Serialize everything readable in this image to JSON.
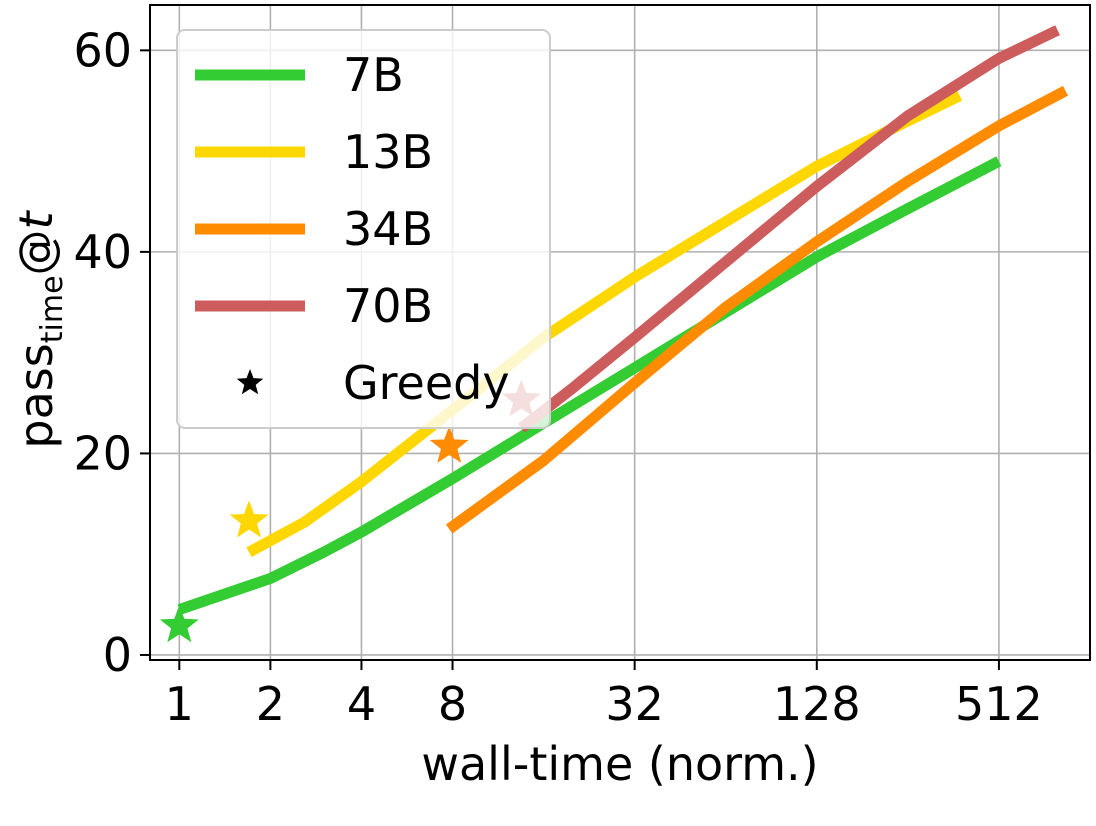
{
  "chart_data": {
    "type": "line",
    "xscale": "log2",
    "xlabel": "wall-time (norm.)",
    "ylabel": {
      "main": "pass",
      "sub": "time",
      "at": "@",
      "var": "t"
    },
    "xlim": [
      0.8,
      1024
    ],
    "ylim": [
      -0.5,
      64.5
    ],
    "xticks": [
      1,
      2,
      4,
      8,
      32,
      128,
      512
    ],
    "xtick_labels": [
      "1",
      "2",
      "4",
      "8",
      "32",
      "128",
      "512"
    ],
    "yticks": [
      0,
      20,
      40,
      60
    ],
    "ytick_labels": [
      "0",
      "20",
      "40",
      "60"
    ],
    "grid": true,
    "legend_position": "top-left",
    "series": [
      {
        "name": "7B",
        "color": "#33cc33",
        "points": [
          [
            1,
            4.5
          ],
          [
            2,
            7.6
          ],
          [
            3,
            10.2
          ],
          [
            4,
            12.2
          ],
          [
            8,
            17.5
          ],
          [
            16,
            23
          ],
          [
            32,
            28.5
          ],
          [
            64,
            34
          ],
          [
            128,
            39.5
          ],
          [
            256,
            44.3
          ],
          [
            512,
            49
          ]
        ],
        "greedy": [
          1,
          2.9
        ]
      },
      {
        "name": "13B",
        "color": "#ffd700",
        "points": [
          [
            1.7,
            10.2
          ],
          [
            2.6,
            13.2
          ],
          [
            4,
            17.2
          ],
          [
            8,
            24.3
          ],
          [
            16,
            31.5
          ],
          [
            32,
            37.5
          ],
          [
            64,
            43
          ],
          [
            128,
            48.5
          ],
          [
            256,
            53
          ],
          [
            380,
            55.5
          ]
        ],
        "greedy": [
          1.7,
          13.3
        ]
      },
      {
        "name": "34B",
        "color": "#ff8c00",
        "points": [
          [
            7.8,
            12.5
          ],
          [
            16,
            19.3
          ],
          [
            32,
            27
          ],
          [
            64,
            34.5
          ],
          [
            128,
            41
          ],
          [
            256,
            47
          ],
          [
            512,
            52.5
          ],
          [
            850,
            56
          ]
        ],
        "greedy": [
          7.8,
          20.7
        ]
      },
      {
        "name": "70B",
        "color": "#cd5c5c",
        "points": [
          [
            13.5,
            22.5
          ],
          [
            20,
            26.5
          ],
          [
            32,
            31.5
          ],
          [
            64,
            39
          ],
          [
            128,
            46.5
          ],
          [
            256,
            53.5
          ],
          [
            512,
            59.2
          ],
          [
            800,
            62
          ]
        ],
        "greedy": [
          13.5,
          25.3
        ]
      }
    ],
    "legend_entries": [
      "7B",
      "13B",
      "34B",
      "70B",
      "Greedy"
    ],
    "greedy_label": "Greedy"
  }
}
